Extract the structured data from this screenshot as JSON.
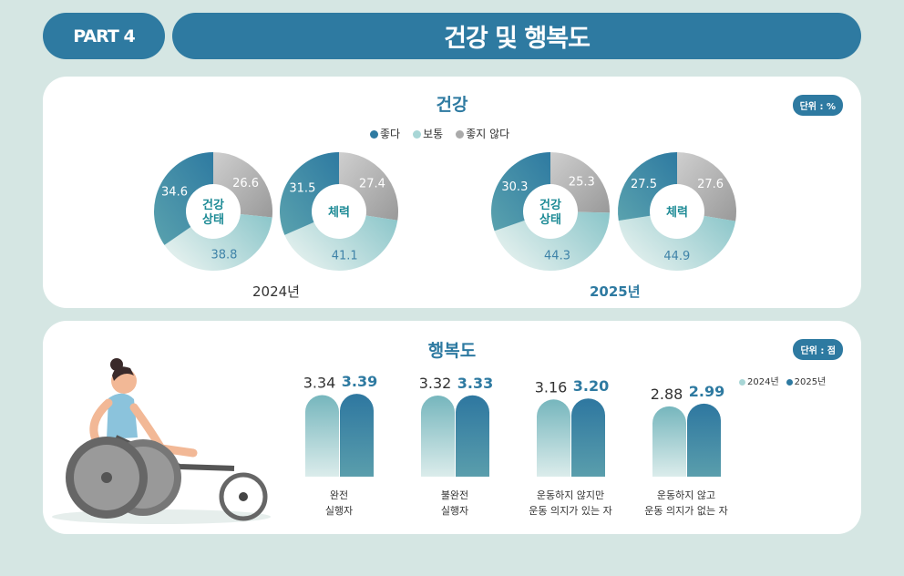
{
  "header": {
    "part": "PART 4",
    "title": "건강 및 행복도"
  },
  "health": {
    "title": "건강",
    "unit": "단위 : %",
    "legend": [
      {
        "label": "좋다",
        "color": "#2e7aa1"
      },
      {
        "label": "보통",
        "color": "#9fcfd0"
      },
      {
        "label": "좋지 않다",
        "color": "#a9a9a9"
      }
    ],
    "years": [
      "2024년",
      "2025년"
    ],
    "donuts": [
      {
        "year": "2024년",
        "center": "건강\n상태",
        "good": 34.6,
        "normal": 38.8,
        "bad": 26.6
      },
      {
        "year": "2024년",
        "center": "체력",
        "good": 31.5,
        "normal": 41.1,
        "bad": 27.4
      },
      {
        "year": "2025년",
        "center": "건강\n상태",
        "good": 30.3,
        "normal": 44.3,
        "bad": 25.3
      },
      {
        "year": "2025년",
        "center": "체력",
        "good": 27.5,
        "normal": 44.9,
        "bad": 27.6
      }
    ]
  },
  "chart_data": {
    "type": "bar",
    "title": "행복도",
    "unit": "단위 : 점",
    "categories": [
      "완전\n실행자",
      "불완전\n실행자",
      "운동하지 않지만\n운동 의지가 있는 자",
      "운동하지 않고\n운동 의지가 없는 자"
    ],
    "series": [
      {
        "name": "2024년",
        "values": [
          "3.34",
          "3.32",
          "3.16",
          "2.88"
        ]
      },
      {
        "name": "2025년",
        "values": [
          "3.39",
          "3.33",
          "3.20",
          "2.99"
        ]
      }
    ]
  }
}
